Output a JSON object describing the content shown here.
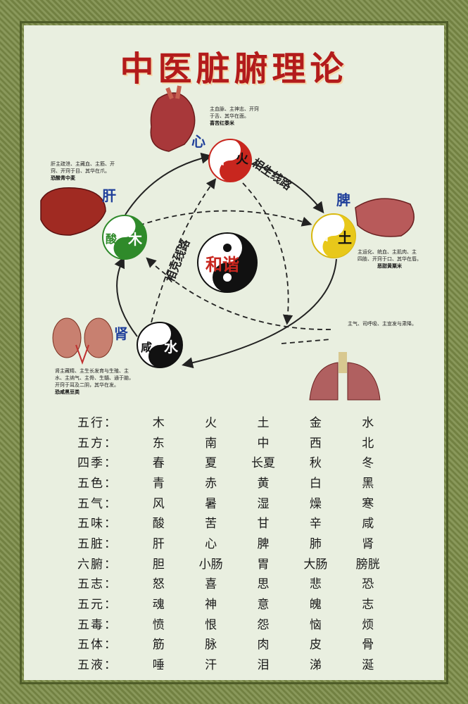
{
  "title": "中医脏腑理论",
  "center": "和谐",
  "cycle_labels": {
    "generating": "相生线路",
    "controlling": "相克线路"
  },
  "elements": {
    "fire": {
      "taste": "苦",
      "element": "火",
      "organ": "心"
    },
    "earth": {
      "taste": "甜",
      "element": "土",
      "organ": "脾"
    },
    "water": {
      "taste": "咸",
      "element": "水",
      "organ": "肾"
    },
    "wood": {
      "taste": "酸",
      "element": "木",
      "organ": "肝"
    },
    "metal_note": "主气、司呼吸、主宣发与肃降。"
  },
  "notes": {
    "heart": {
      "line1": "主血脉、主神志、开窍",
      "line2": "于舌、其华在面。",
      "taste": "喜苦红黍米"
    },
    "liver": {
      "line1": "肝主疏泄、主藏血、主筋、开",
      "line2": "窍、开窍于目、其华在爪。",
      "taste": "恐酸青中麦"
    },
    "spleen": {
      "line1": "主运化、统血、主肌肉、主",
      "line2": "四肢、开窍于口、其华在唇。",
      "taste": "恶甜黄粟米"
    },
    "kidney": {
      "line1": "肾主藏精、主生长发育与生殖、主",
      "line2": "水、主纳气、主骨、生髓、通于脑，",
      "line3": "开窍于耳及二阴，其华在发。",
      "taste": "恐咸黑豆类"
    }
  },
  "table": {
    "rows": [
      {
        "h": "五行：",
        "v": [
          "木",
          "火",
          "土",
          "金",
          "水"
        ]
      },
      {
        "h": "五方：",
        "v": [
          "东",
          "南",
          "中",
          "西",
          "北"
        ]
      },
      {
        "h": "四季：",
        "v": [
          "春",
          "夏",
          "长夏",
          "秋",
          "冬"
        ]
      },
      {
        "h": "五色：",
        "v": [
          "青",
          "赤",
          "黄",
          "白",
          "黑"
        ]
      },
      {
        "h": "五气：",
        "v": [
          "风",
          "暑",
          "湿",
          "燥",
          "寒"
        ]
      },
      {
        "h": "五味：",
        "v": [
          "酸",
          "苦",
          "甘",
          "辛",
          "咸"
        ]
      },
      {
        "h": "五脏：",
        "v": [
          "肝",
          "心",
          "脾",
          "肺",
          "肾"
        ]
      },
      {
        "h": "六腑：",
        "v": [
          "胆",
          "小肠",
          "胃",
          "大肠",
          "膀胱"
        ]
      },
      {
        "h": "五志：",
        "v": [
          "怒",
          "喜",
          "思",
          "悲",
          "恐"
        ]
      },
      {
        "h": "五元：",
        "v": [
          "魂",
          "神",
          "意",
          "魄",
          "志"
        ]
      },
      {
        "h": "五毒：",
        "v": [
          "愤",
          "恨",
          "怨",
          "恼",
          "烦"
        ]
      },
      {
        "h": "五体：",
        "v": [
          "筋",
          "脉",
          "肉",
          "皮",
          "骨"
        ]
      },
      {
        "h": "五液：",
        "v": [
          "唾",
          "汗",
          "泪",
          "涕",
          "涎"
        ]
      }
    ]
  },
  "colors": {
    "title": "#b31b1b",
    "fire": "#c8261e",
    "earth": "#e8c81a",
    "wood": "#2f8a2a",
    "water": "#111111",
    "organ_label": "#1f3f9a"
  }
}
